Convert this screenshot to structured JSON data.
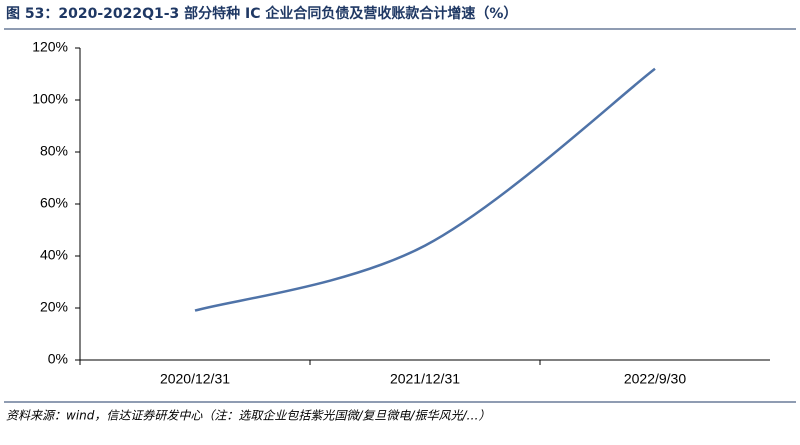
{
  "chart_data": {
    "type": "line",
    "title": "图 53：2020-2022Q1-3 部分特种 IC 企业合同负债及营收账款合计增速（%）",
    "source": "资料来源：wind，信达证券研发中心（注：选取企业包括紫光国微/复旦微电/振华风光/…）",
    "categories": [
      "2020/12/31",
      "2021/12/31",
      "2022/9/30"
    ],
    "series": [
      {
        "name": "增速",
        "color": "#4f73a8",
        "values": [
          19,
          44,
          112
        ]
      }
    ],
    "ylim": [
      0,
      120
    ],
    "yticks": [
      {
        "value": 0,
        "label": "0%"
      },
      {
        "value": 20,
        "label": "20%"
      },
      {
        "value": 40,
        "label": "40%"
      },
      {
        "value": 60,
        "label": "60%"
      },
      {
        "value": 80,
        "label": "80%"
      },
      {
        "value": 100,
        "label": "100%"
      },
      {
        "value": 120,
        "label": "120%"
      }
    ]
  }
}
